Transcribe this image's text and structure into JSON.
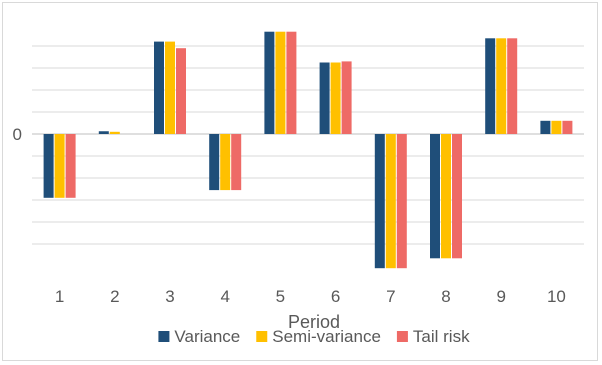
{
  "chart_data": {
    "type": "bar",
    "title": "",
    "xlabel": "Period",
    "ylabel": "",
    "categories": [
      "1",
      "2",
      "3",
      "4",
      "5",
      "6",
      "7",
      "8",
      "9",
      "10"
    ],
    "y_tick_labels": [
      {
        "value": 0,
        "label": "0"
      }
    ],
    "ylim": [
      -1.25,
      1.0
    ],
    "gridlines": [
      -1.0,
      -0.8,
      -0.6,
      -0.4,
      -0.2,
      0,
      0.2,
      0.4,
      0.6,
      0.8
    ],
    "grid": true,
    "legend_position": "bottom",
    "series": [
      {
        "name": "Variance",
        "color": "#1f4e79",
        "values": [
          -0.58,
          0.025,
          0.84,
          -0.51,
          0.93,
          0.65,
          -1.22,
          -1.13,
          0.87,
          0.12
        ]
      },
      {
        "name": "Semi-variance",
        "color": "#ffc000",
        "values": [
          -0.58,
          0.02,
          0.84,
          -0.51,
          0.93,
          0.65,
          -1.22,
          -1.13,
          0.87,
          0.12
        ]
      },
      {
        "name": "Tail risk",
        "color": "#ee6a66",
        "values": [
          -0.58,
          0.0,
          0.78,
          -0.51,
          0.93,
          0.66,
          -1.22,
          -1.13,
          0.87,
          0.12
        ]
      }
    ]
  }
}
